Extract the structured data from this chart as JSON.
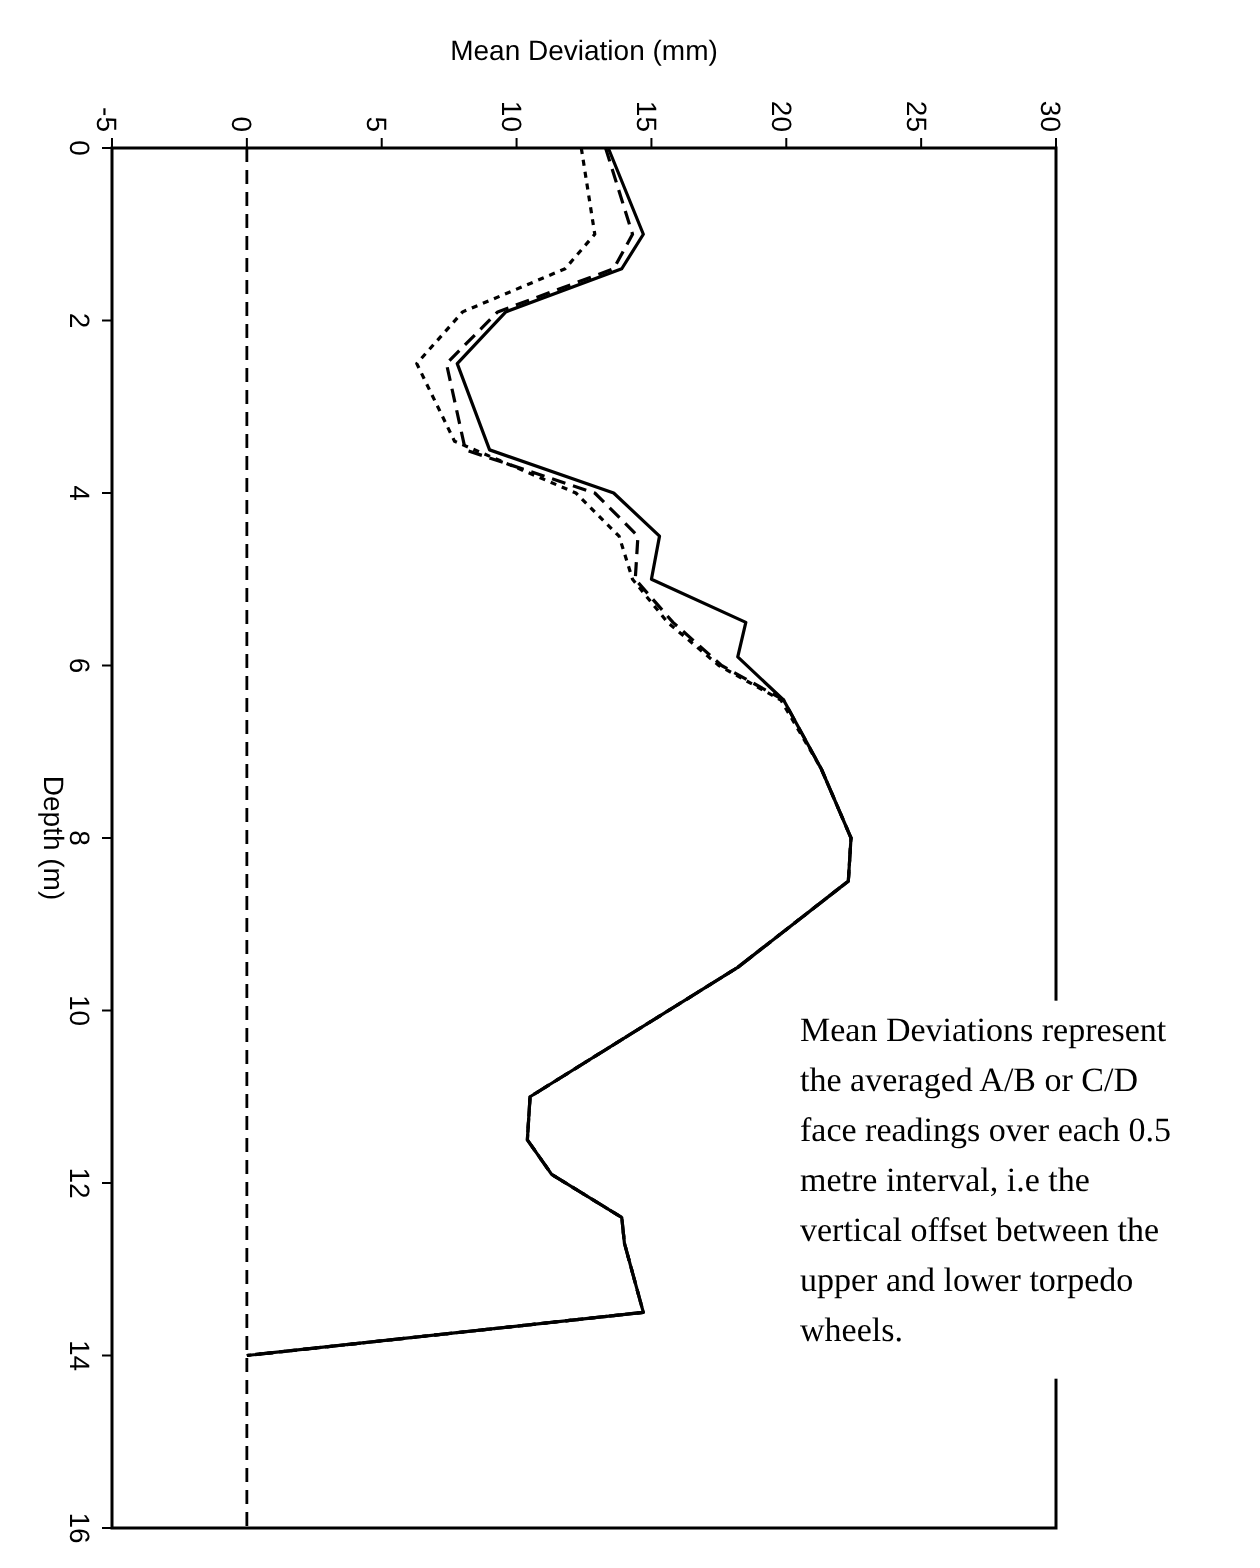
{
  "chart_data": {
    "type": "line",
    "xlabel": "Mean Deviation (mm)",
    "ylabel": "Depth (m)",
    "xlim": [
      -5,
      30
    ],
    "xticks": [
      -5,
      0,
      5,
      10,
      15,
      20,
      25,
      30
    ],
    "ylim": [
      16,
      0
    ],
    "yticks": [
      0,
      2,
      4,
      6,
      8,
      10,
      12,
      14,
      16
    ],
    "series": [
      {
        "color": "#000000",
        "line_style": "solid",
        "x": [
          13.4,
          14.7,
          13.9,
          9.6,
          7.8,
          9.0,
          13.6,
          15.3,
          15.0,
          18.5,
          18.2,
          19.9,
          21.3,
          22.4,
          22.3,
          18.2,
          10.5,
          10.4,
          11.3,
          13.9,
          14.0,
          14.7,
          0
        ],
        "values": [
          0,
          1.0,
          1.4,
          1.9,
          2.5,
          3.5,
          4.0,
          4.5,
          5.0,
          5.5,
          5.9,
          6.4,
          7.2,
          8.0,
          8.5,
          9.5,
          11.0,
          11.5,
          11.9,
          12.4,
          12.7,
          13.5,
          14.0
        ]
      },
      {
        "color": "#000000",
        "line_style": "dashed",
        "x": [
          13.3,
          14.3,
          13.6,
          9.3,
          7.4,
          8.1,
          12.9,
          14.5,
          14.4,
          15.8,
          17.6,
          19.9,
          21.3,
          22.4,
          22.3,
          18.2,
          10.5,
          10.4,
          11.3,
          13.9,
          14.0,
          14.7,
          0
        ],
        "values": [
          0,
          1.0,
          1.4,
          1.9,
          2.5,
          3.5,
          4.0,
          4.5,
          5.0,
          5.5,
          6.0,
          6.4,
          7.2,
          8.0,
          8.5,
          9.5,
          11.0,
          11.5,
          11.9,
          12.4,
          12.7,
          13.5,
          14.0
        ]
      },
      {
        "color": "#000000",
        "line_style": "dotted",
        "x": [
          12.4,
          12.9,
          11.8,
          8.0,
          6.3,
          7.7,
          12.2,
          13.8,
          14.3,
          15.6,
          17.5,
          19.8,
          21.3,
          22.4,
          22.3,
          18.2,
          10.5,
          10.4,
          11.3,
          13.9,
          14.0,
          14.7,
          0
        ],
        "values": [
          0,
          1.0,
          1.4,
          1.9,
          2.5,
          3.4,
          4.0,
          4.5,
          5.0,
          5.5,
          6.0,
          6.4,
          7.2,
          8.0,
          8.5,
          9.5,
          11.0,
          11.5,
          11.9,
          12.4,
          12.7,
          13.5,
          14.0
        ]
      }
    ],
    "ref_lines": [
      {
        "axis": "x",
        "value": 0,
        "line_style": "dashed",
        "color": "#000000"
      }
    ],
    "annotations": [
      "Mean Deviations represent the averaged A/B or C/D face readings over each 0.5 metre interval, i.e the vertical offset between the upper and lower torpedo wheels."
    ]
  }
}
